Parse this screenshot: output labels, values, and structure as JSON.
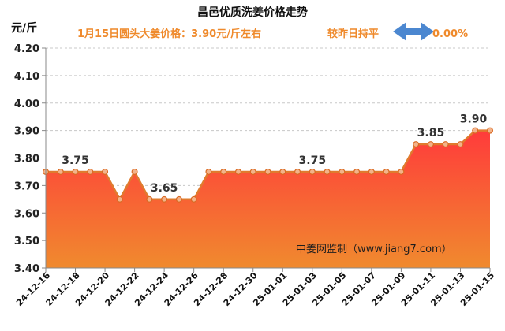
{
  "chart_data": {
    "type": "area",
    "title": "昌邑优质洗姜价格走势",
    "ylabel": "元/斤",
    "subtitle": "1月15日圆头大姜价格：3.90元/斤左右",
    "change_label": "较昨日持平",
    "change_value": "0.00%",
    "watermark": "中姜网监制（www.jiang7.com）",
    "ylim": [
      3.4,
      4.2
    ],
    "yticks": [
      "3.40",
      "3.50",
      "3.60",
      "3.70",
      "3.80",
      "3.90",
      "4.00",
      "4.10",
      "4.20"
    ],
    "grid": true,
    "x": [
      "24-12-16",
      "24-12-17",
      "24-12-18",
      "24-12-19",
      "24-12-20",
      "24-12-21",
      "24-12-22",
      "24-12-23",
      "24-12-24",
      "24-12-25",
      "24-12-26",
      "24-12-27",
      "24-12-28",
      "24-12-29",
      "24-12-30",
      "24-12-31",
      "25-01-01",
      "25-01-02",
      "25-01-03",
      "25-01-04",
      "25-01-05",
      "25-01-06",
      "25-01-07",
      "25-01-08",
      "25-01-09",
      "25-01-10",
      "25-01-11",
      "25-01-12",
      "25-01-13",
      "25-01-14",
      "25-01-15"
    ],
    "xtick_labels": [
      "24-12-16",
      "24-12-18",
      "24-12-20",
      "24-12-22",
      "24-12-24",
      "24-12-26",
      "24-12-28",
      "24-12-30",
      "25-01-01",
      "25-01-03",
      "25-01-05",
      "25-01-07",
      "25-01-09",
      "25-01-11",
      "25-01-13",
      "25-01-15"
    ],
    "values": [
      3.75,
      3.75,
      3.75,
      3.75,
      3.75,
      3.65,
      3.75,
      3.65,
      3.65,
      3.65,
      3.65,
      3.75,
      3.75,
      3.75,
      3.75,
      3.75,
      3.75,
      3.75,
      3.75,
      3.75,
      3.75,
      3.75,
      3.75,
      3.75,
      3.75,
      3.85,
      3.85,
      3.85,
      3.85,
      3.9,
      3.9
    ],
    "data_labels": [
      {
        "index": 2,
        "text": "3.75"
      },
      {
        "index": 8,
        "text": "3.65"
      },
      {
        "index": 18,
        "text": "3.75"
      },
      {
        "index": 26,
        "text": "3.85"
      },
      {
        "index": 30,
        "text": "3.90"
      }
    ],
    "colors": {
      "line": "#e07b2e",
      "fill_top": "#ff3b3b",
      "fill_bottom": "#f08a2e",
      "arrow": "#4b87d0",
      "subtitle": "#ef8a2c"
    }
  }
}
